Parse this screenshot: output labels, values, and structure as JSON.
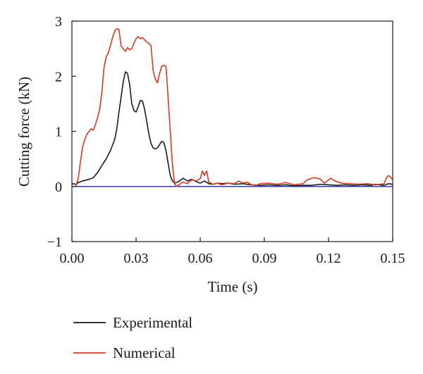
{
  "chart_data": {
    "type": "line",
    "title": "",
    "xlabel": "Time (s)",
    "ylabel": "Cutting force (kN)",
    "xlim": [
      0,
      0.15
    ],
    "ylim": [
      -1,
      3
    ],
    "x_ticks": [
      {
        "value": 0,
        "label": "0.00"
      },
      {
        "value": 0.03,
        "label": "0.03"
      },
      {
        "value": 0.06,
        "label": "0.06"
      },
      {
        "value": 0.09,
        "label": "0.09"
      },
      {
        "value": 0.12,
        "label": "0.12"
      },
      {
        "value": 0.15,
        "label": "0.15"
      }
    ],
    "y_ticks": [
      {
        "value": -1,
        "label": "−1"
      },
      {
        "value": 0,
        "label": "0"
      },
      {
        "value": 1,
        "label": "1"
      },
      {
        "value": 2,
        "label": "2"
      },
      {
        "value": 3,
        "label": "3"
      }
    ],
    "grid": false,
    "legend_position": "below",
    "zero_line_color": "#3a3ab0",
    "series": [
      {
        "name": "Experimental",
        "color": "#1a1a1a",
        "points": [
          [
            0.0,
            0.05
          ],
          [
            0.002,
            0.04
          ],
          [
            0.003,
            0.07
          ],
          [
            0.005,
            0.1
          ],
          [
            0.008,
            0.13
          ],
          [
            0.01,
            0.16
          ],
          [
            0.012,
            0.25
          ],
          [
            0.014,
            0.38
          ],
          [
            0.016,
            0.5
          ],
          [
            0.018,
            0.65
          ],
          [
            0.02,
            0.85
          ],
          [
            0.021,
            1.05
          ],
          [
            0.022,
            1.35
          ],
          [
            0.023,
            1.62
          ],
          [
            0.024,
            1.9
          ],
          [
            0.025,
            2.08
          ],
          [
            0.026,
            2.05
          ],
          [
            0.027,
            1.85
          ],
          [
            0.028,
            1.5
          ],
          [
            0.029,
            1.38
          ],
          [
            0.03,
            1.35
          ],
          [
            0.031,
            1.45
          ],
          [
            0.032,
            1.56
          ],
          [
            0.033,
            1.55
          ],
          [
            0.034,
            1.4
          ],
          [
            0.035,
            1.18
          ],
          [
            0.036,
            0.95
          ],
          [
            0.037,
            0.78
          ],
          [
            0.038,
            0.7
          ],
          [
            0.039,
            0.68
          ],
          [
            0.04,
            0.7
          ],
          [
            0.041,
            0.76
          ],
          [
            0.042,
            0.82
          ],
          [
            0.043,
            0.8
          ],
          [
            0.044,
            0.65
          ],
          [
            0.045,
            0.42
          ],
          [
            0.046,
            0.2
          ],
          [
            0.047,
            0.1
          ],
          [
            0.048,
            0.06
          ],
          [
            0.05,
            0.09
          ],
          [
            0.052,
            0.15
          ],
          [
            0.054,
            0.1
          ],
          [
            0.056,
            0.13
          ],
          [
            0.058,
            0.09
          ],
          [
            0.06,
            0.06
          ],
          [
            0.062,
            0.1
          ],
          [
            0.064,
            0.05
          ],
          [
            0.066,
            0.04
          ],
          [
            0.068,
            0.06
          ],
          [
            0.07,
            0.05
          ],
          [
            0.073,
            0.06
          ],
          [
            0.076,
            0.04
          ],
          [
            0.08,
            0.05
          ],
          [
            0.084,
            0.03
          ],
          [
            0.088,
            0.02
          ],
          [
            0.092,
            0.03
          ],
          [
            0.096,
            0.02
          ],
          [
            0.1,
            0.03
          ],
          [
            0.104,
            0.01
          ],
          [
            0.108,
            0.02
          ],
          [
            0.112,
            0.02
          ],
          [
            0.116,
            0.04
          ],
          [
            0.12,
            0.03
          ],
          [
            0.124,
            0.02
          ],
          [
            0.128,
            0.03
          ],
          [
            0.132,
            0.02
          ],
          [
            0.136,
            0.03
          ],
          [
            0.14,
            0.02
          ],
          [
            0.142,
            0.04
          ],
          [
            0.144,
            0.03
          ],
          [
            0.146,
            0.02
          ],
          [
            0.148,
            0.05
          ],
          [
            0.15,
            0.04
          ]
        ]
      },
      {
        "name": "Numerical",
        "color": "#d23a22",
        "points": [
          [
            0.002,
            0.02
          ],
          [
            0.003,
            0.15
          ],
          [
            0.004,
            0.45
          ],
          [
            0.005,
            0.72
          ],
          [
            0.006,
            0.85
          ],
          [
            0.007,
            0.95
          ],
          [
            0.008,
            1.0
          ],
          [
            0.009,
            1.05
          ],
          [
            0.01,
            1.02
          ],
          [
            0.011,
            1.12
          ],
          [
            0.012,
            1.25
          ],
          [
            0.013,
            1.4
          ],
          [
            0.014,
            1.7
          ],
          [
            0.015,
            2.15
          ],
          [
            0.016,
            2.35
          ],
          [
            0.017,
            2.42
          ],
          [
            0.018,
            2.55
          ],
          [
            0.019,
            2.7
          ],
          [
            0.02,
            2.82
          ],
          [
            0.021,
            2.86
          ],
          [
            0.022,
            2.85
          ],
          [
            0.023,
            2.55
          ],
          [
            0.024,
            2.5
          ],
          [
            0.025,
            2.45
          ],
          [
            0.026,
            2.52
          ],
          [
            0.027,
            2.48
          ],
          [
            0.028,
            2.5
          ],
          [
            0.029,
            2.6
          ],
          [
            0.03,
            2.68
          ],
          [
            0.031,
            2.72
          ],
          [
            0.032,
            2.68
          ],
          [
            0.033,
            2.7
          ],
          [
            0.034,
            2.66
          ],
          [
            0.035,
            2.62
          ],
          [
            0.036,
            2.6
          ],
          [
            0.037,
            2.55
          ],
          [
            0.038,
            2.1
          ],
          [
            0.039,
            1.95
          ],
          [
            0.04,
            1.88
          ],
          [
            0.041,
            2.05
          ],
          [
            0.042,
            2.18
          ],
          [
            0.043,
            2.2
          ],
          [
            0.044,
            2.18
          ],
          [
            0.045,
            1.6
          ],
          [
            0.046,
            1.0
          ],
          [
            0.047,
            0.4
          ],
          [
            0.048,
            0.05
          ],
          [
            0.049,
            0.0
          ],
          [
            0.05,
            0.03
          ],
          [
            0.052,
            0.08
          ],
          [
            0.054,
            0.05
          ],
          [
            0.056,
            0.12
          ],
          [
            0.058,
            0.1
          ],
          [
            0.06,
            0.14
          ],
          [
            0.061,
            0.28
          ],
          [
            0.062,
            0.2
          ],
          [
            0.063,
            0.28
          ],
          [
            0.064,
            0.08
          ],
          [
            0.066,
            0.04
          ],
          [
            0.068,
            0.06
          ],
          [
            0.07,
            0.03
          ],
          [
            0.073,
            0.06
          ],
          [
            0.076,
            0.05
          ],
          [
            0.078,
            0.1
          ],
          [
            0.08,
            0.06
          ],
          [
            0.082,
            0.08
          ],
          [
            0.084,
            0.03
          ],
          [
            0.086,
            0.02
          ],
          [
            0.088,
            0.05
          ],
          [
            0.092,
            0.06
          ],
          [
            0.096,
            0.04
          ],
          [
            0.1,
            0.07
          ],
          [
            0.104,
            0.03
          ],
          [
            0.108,
            0.05
          ],
          [
            0.11,
            0.12
          ],
          [
            0.113,
            0.16
          ],
          [
            0.116,
            0.14
          ],
          [
            0.118,
            0.06
          ],
          [
            0.121,
            0.15
          ],
          [
            0.123,
            0.1
          ],
          [
            0.126,
            0.06
          ],
          [
            0.13,
            0.05
          ],
          [
            0.134,
            0.04
          ],
          [
            0.138,
            0.05
          ],
          [
            0.142,
            0.03
          ],
          [
            0.146,
            0.05
          ],
          [
            0.147,
            0.15
          ],
          [
            0.148,
            0.2
          ],
          [
            0.149,
            0.17
          ],
          [
            0.15,
            0.12
          ]
        ]
      }
    ]
  }
}
